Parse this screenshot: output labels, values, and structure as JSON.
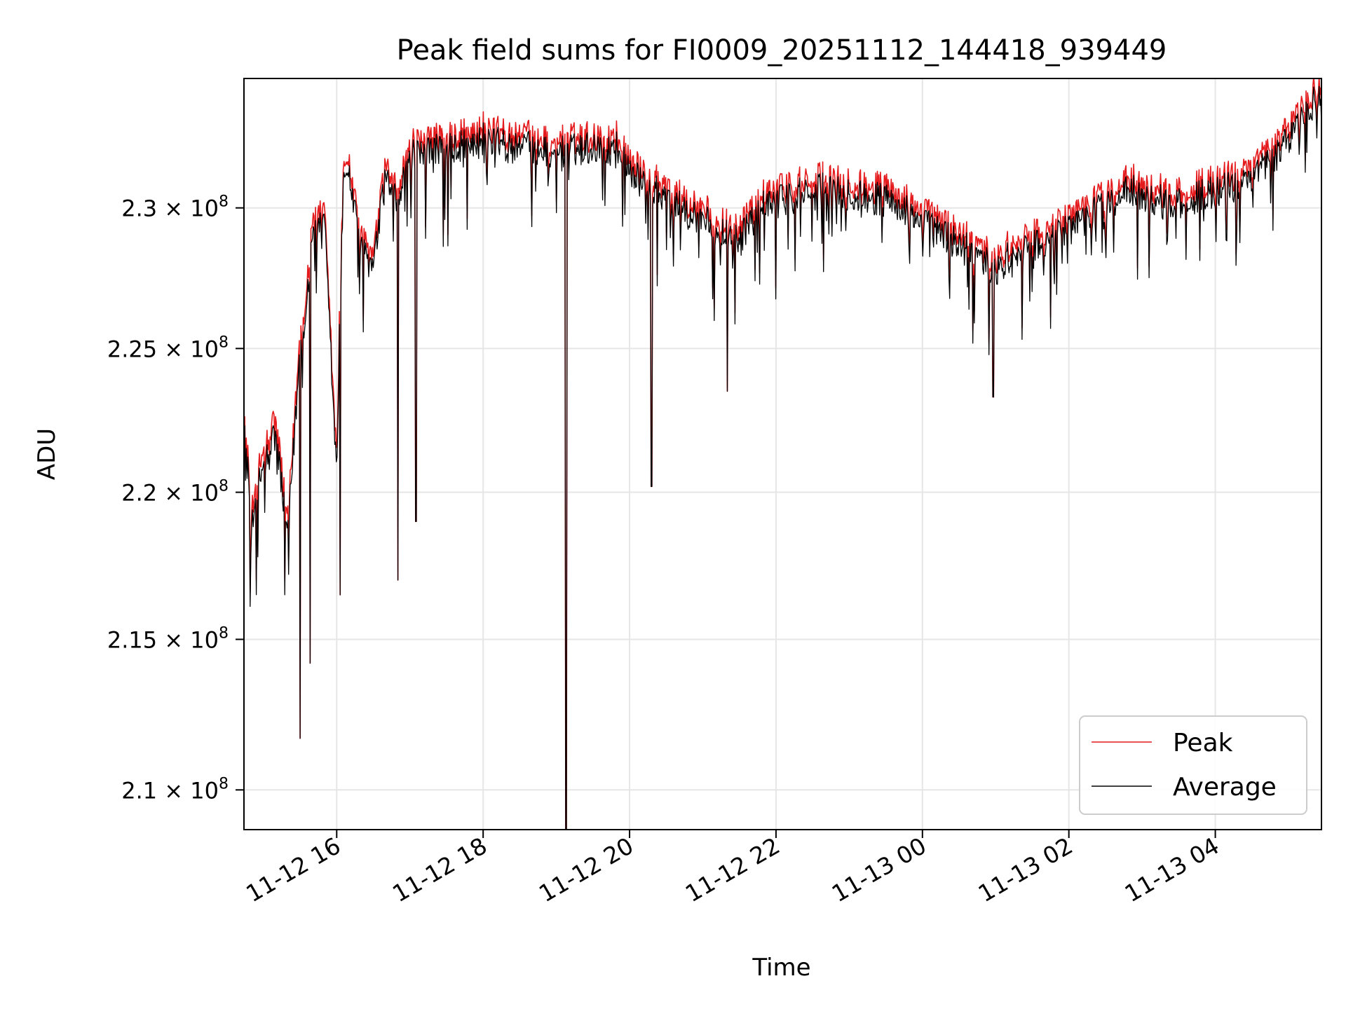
{
  "chart_data": {
    "type": "line",
    "title": "Peak field sums for FI0009_20251112_144418_939449",
    "xlabel": "Time",
    "ylabel": "ADU",
    "y_scale": "log",
    "grid": true,
    "legend_position": "lower-right",
    "xlim": [
      "2025-11-12 14:44",
      "2025-11-13 05:27"
    ],
    "ylim": [
      208700000,
      234700000
    ],
    "x_ticks": [
      {
        "value": "2025-11-12 16:00",
        "label": "11-12 16"
      },
      {
        "value": "2025-11-12 18:00",
        "label": "11-12 18"
      },
      {
        "value": "2025-11-12 20:00",
        "label": "11-12 20"
      },
      {
        "value": "2025-11-12 22:00",
        "label": "11-12 22"
      },
      {
        "value": "2025-11-13 00:00",
        "label": "11-13 00"
      },
      {
        "value": "2025-11-13 02:00",
        "label": "11-13 02"
      },
      {
        "value": "2025-11-13 04:00",
        "label": "11-13 04"
      }
    ],
    "y_ticks": [
      {
        "value": 210000000,
        "label": "2.1",
        "exponent": "8"
      },
      {
        "value": 215000000,
        "label": "2.15",
        "exponent": "8"
      },
      {
        "value": 220000000,
        "label": "2.2",
        "exponent": "8"
      },
      {
        "value": 225000000,
        "label": "2.25",
        "exponent": "8"
      },
      {
        "value": 230000000,
        "label": "2.3",
        "exponent": "8"
      }
    ],
    "tick_multiplier": "× 10",
    "series": [
      {
        "name": "Peak",
        "color": "#e41a1c",
        "x": [
          "2025-11-12 14:44",
          "2025-11-12 14:50",
          "2025-11-12 15:00",
          "2025-11-12 15:10",
          "2025-11-12 15:20",
          "2025-11-12 15:30",
          "2025-11-12 15:35",
          "2025-11-12 15:40",
          "2025-11-12 15:50",
          "2025-11-12 16:00",
          "2025-11-12 16:05",
          "2025-11-12 16:10",
          "2025-11-12 16:20",
          "2025-11-12 16:30",
          "2025-11-12 16:40",
          "2025-11-12 16:50",
          "2025-11-12 17:00",
          "2025-11-12 17:10",
          "2025-11-12 17:20",
          "2025-11-12 17:30",
          "2025-11-12 17:45",
          "2025-11-12 18:00",
          "2025-11-12 18:20",
          "2025-11-12 18:40",
          "2025-11-12 19:00",
          "2025-11-12 19:05",
          "2025-11-12 19:15",
          "2025-11-12 19:30",
          "2025-11-12 19:50",
          "2025-11-12 20:10",
          "2025-11-12 20:30",
          "2025-11-12 20:50",
          "2025-11-12 21:10",
          "2025-11-12 21:30",
          "2025-11-12 21:50",
          "2025-11-12 22:10",
          "2025-11-12 22:30",
          "2025-11-12 22:50",
          "2025-11-12 23:10",
          "2025-11-12 23:30",
          "2025-11-12 23:50",
          "2025-11-13 00:10",
          "2025-11-13 00:30",
          "2025-11-13 00:50",
          "2025-11-13 01:00",
          "2025-11-13 01:10",
          "2025-11-13 01:30",
          "2025-11-13 01:50",
          "2025-11-13 02:10",
          "2025-11-13 02:30",
          "2025-11-13 02:50",
          "2025-11-13 03:10",
          "2025-11-13 03:30",
          "2025-11-13 03:50",
          "2025-11-13 04:10",
          "2025-11-13 04:30",
          "2025-11-13 04:50",
          "2025-11-13 05:10",
          "2025-11-13 05:27"
        ],
        "y": [
          222800000,
          219500000,
          221500000,
          222500000,
          219000000,
          225500000,
          227000000,
          229500000,
          229800000,
          221000000,
          231800000,
          231700000,
          229000000,
          228200000,
          231500000,
          230500000,
          232300000,
          232200000,
          232600000,
          232500000,
          232700000,
          232900000,
          232600000,
          232600000,
          232400000,
          232500000,
          232500000,
          232600000,
          232600000,
          231200000,
          230800000,
          230200000,
          229700000,
          229200000,
          230500000,
          230700000,
          231100000,
          231000000,
          230800000,
          230700000,
          230200000,
          229600000,
          229100000,
          228500000,
          228200000,
          228600000,
          229000000,
          229400000,
          229900000,
          230500000,
          231100000,
          230700000,
          230500000,
          230900000,
          231100000,
          231500000,
          232300000,
          233500000,
          234600000
        ]
      },
      {
        "name": "Average",
        "color": "#000000",
        "x": [
          "2025-11-12 14:44",
          "2025-11-12 14:50",
          "2025-11-12 15:00",
          "2025-11-12 15:10",
          "2025-11-12 15:20",
          "2025-11-12 15:30",
          "2025-11-12 15:35",
          "2025-11-12 15:40",
          "2025-11-12 15:50",
          "2025-11-12 16:00",
          "2025-11-12 16:05",
          "2025-11-12 16:10",
          "2025-11-12 16:20",
          "2025-11-12 16:30",
          "2025-11-12 16:40",
          "2025-11-12 16:50",
          "2025-11-12 17:00",
          "2025-11-12 17:10",
          "2025-11-12 17:20",
          "2025-11-12 17:30",
          "2025-11-12 17:45",
          "2025-11-12 18:00",
          "2025-11-12 18:20",
          "2025-11-12 18:40",
          "2025-11-12 19:00",
          "2025-11-12 19:05",
          "2025-11-12 19:15",
          "2025-11-12 19:30",
          "2025-11-12 19:50",
          "2025-11-12 20:10",
          "2025-11-12 20:30",
          "2025-11-12 20:50",
          "2025-11-12 21:10",
          "2025-11-12 21:30",
          "2025-11-12 21:50",
          "2025-11-12 22:10",
          "2025-11-12 22:30",
          "2025-11-12 22:50",
          "2025-11-12 23:10",
          "2025-11-12 23:30",
          "2025-11-12 23:50",
          "2025-11-13 00:10",
          "2025-11-13 00:30",
          "2025-11-13 00:50",
          "2025-11-13 01:00",
          "2025-11-13 01:10",
          "2025-11-13 01:30",
          "2025-11-13 01:50",
          "2025-11-13 02:10",
          "2025-11-13 02:30",
          "2025-11-13 02:50",
          "2025-11-13 03:10",
          "2025-11-13 03:30",
          "2025-11-13 03:50",
          "2025-11-13 04:10",
          "2025-11-13 04:30",
          "2025-11-13 04:50",
          "2025-11-13 05:10",
          "2025-11-13 05:27"
        ],
        "y": [
          222500000,
          219000000,
          221000000,
          222000000,
          218500000,
          225000000,
          226500000,
          229000000,
          229400000,
          220500000,
          231400000,
          231300000,
          228600000,
          227800000,
          231100000,
          230100000,
          231900000,
          231800000,
          232200000,
          232100000,
          232300000,
          232500000,
          232200000,
          232200000,
          232000000,
          232100000,
          232100000,
          232200000,
          232200000,
          230800000,
          230400000,
          229800000,
          229300000,
          228800000,
          230100000,
          230300000,
          230700000,
          230600000,
          230400000,
          230300000,
          229800000,
          229200000,
          228700000,
          228100000,
          227800000,
          228200000,
          228600000,
          229000000,
          229500000,
          230100000,
          230700000,
          230300000,
          230100000,
          230500000,
          230700000,
          231100000,
          231900000,
          233100000,
          234200000
        ]
      }
    ],
    "annotations": [
      {
        "type": "dip",
        "x": "2025-11-12 15:30",
        "y": 211700000
      },
      {
        "type": "dip",
        "x": "2025-11-12 15:38",
        "y": 214200000
      },
      {
        "type": "dip",
        "x": "2025-11-12 16:03",
        "y": 216500000
      },
      {
        "type": "dip",
        "x": "2025-11-12 16:50",
        "y": 217000000
      },
      {
        "type": "dip",
        "x": "2025-11-12 17:05",
        "y": 219000000
      },
      {
        "type": "dip",
        "x": "2025-11-12 19:08",
        "y": 208700000
      },
      {
        "type": "dip",
        "x": "2025-11-12 20:18",
        "y": 220200000
      },
      {
        "type": "dip",
        "x": "2025-11-12 21:20",
        "y": 223500000
      },
      {
        "type": "dip",
        "x": "2025-11-13 00:58",
        "y": 223300000
      }
    ]
  }
}
